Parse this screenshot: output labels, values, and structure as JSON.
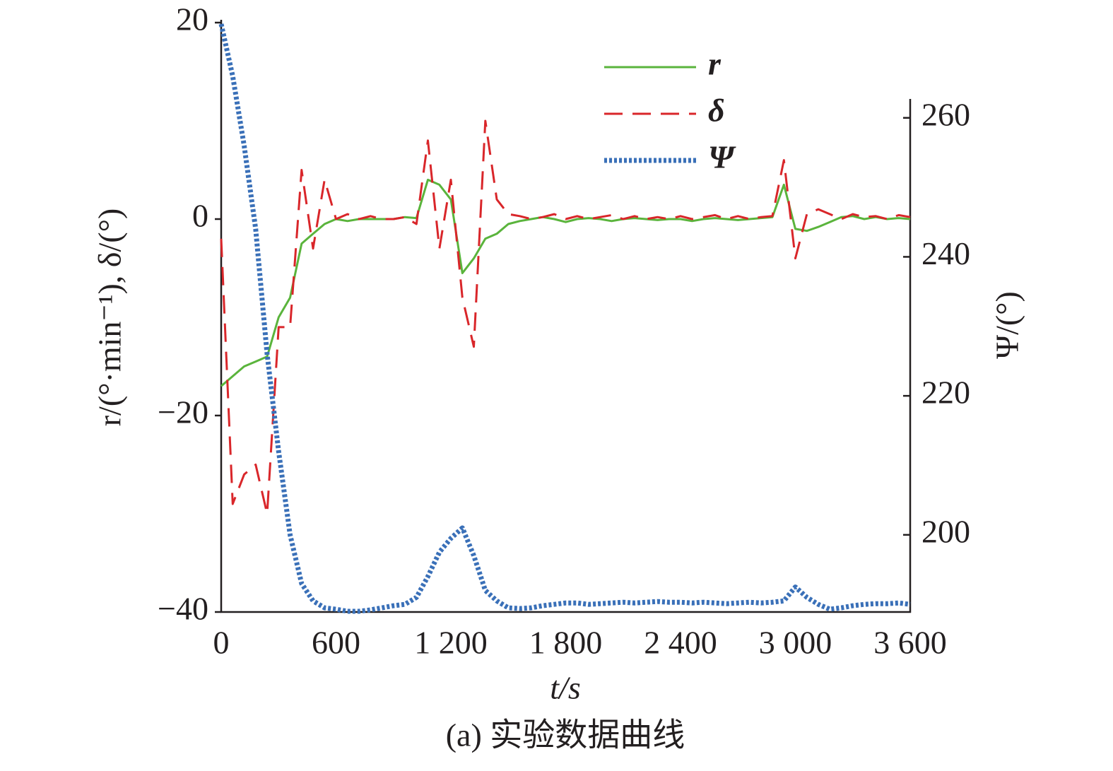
{
  "chart_data": {
    "type": "line",
    "caption": "(a) 实验数据曲线",
    "x_label": "t/s",
    "y_label": "r/(°·min⁻¹), δ/(°)",
    "y2_label": "Ψ/(°)",
    "x": [
      0,
      60,
      120,
      180,
      240,
      300,
      360,
      420,
      480,
      540,
      600,
      660,
      720,
      780,
      840,
      900,
      960,
      1020,
      1080,
      1140,
      1200,
      1260,
      1320,
      1380,
      1440,
      1500,
      1560,
      1620,
      1680,
      1740,
      1800,
      1860,
      1920,
      1980,
      2040,
      2100,
      2160,
      2220,
      2280,
      2340,
      2400,
      2460,
      2520,
      2580,
      2640,
      2700,
      2760,
      2820,
      2880,
      2940,
      3000,
      3060,
      3120,
      3180,
      3240,
      3300,
      3360,
      3420,
      3480,
      3540,
      3600
    ],
    "series": [
      {
        "name": "r",
        "color": "#5ab43c",
        "style": "solid",
        "values": [
          -17,
          -16,
          -15,
          -14.5,
          -14,
          -10,
          -8,
          -2.5,
          -1.5,
          -0.5,
          0,
          -0.2,
          0,
          0,
          0,
          0,
          0.2,
          0.1,
          4,
          3.5,
          2,
          -5.5,
          -4,
          -2,
          -1.5,
          -0.5,
          -0.2,
          0,
          0.2,
          0,
          -0.3,
          0,
          0.1,
          0,
          -0.2,
          0,
          0.1,
          0,
          -0.1,
          0,
          0,
          -0.2,
          0,
          0.1,
          0,
          -0.1,
          0,
          0.1,
          0.2,
          3.5,
          -1,
          -1.2,
          -0.8,
          -0.3,
          0.2,
          0.3,
          0,
          0.2,
          0,
          0.1,
          0
        ]
      },
      {
        "name": "δ",
        "color": "#d9262a",
        "style": "dashed",
        "values": [
          -2,
          -29,
          -26,
          -25,
          -30,
          -11,
          -11,
          5,
          -3,
          4,
          0,
          0.5,
          0,
          0.3,
          0,
          0,
          0.2,
          -0.5,
          8,
          -3,
          4,
          -8,
          -13,
          10,
          2,
          0.5,
          0.3,
          0,
          0.2,
          0.5,
          0,
          0.3,
          0,
          0.2,
          0.4,
          0,
          0.3,
          0,
          0.2,
          0,
          0.3,
          0,
          0.2,
          0.4,
          0,
          0.3,
          0,
          0.2,
          0.3,
          6,
          -4,
          0.5,
          1,
          0.5,
          0,
          0.5,
          0.2,
          0.3,
          0,
          0.4,
          0.2
        ]
      },
      {
        "name": "Ψ",
        "color": "#3a70b8",
        "style": "dotted",
        "axis": "y2",
        "values": [
          273.5,
          266,
          256,
          244,
          226,
          212,
          200,
          193,
          190.5,
          189.5,
          189.3,
          189,
          189,
          189.2,
          189.5,
          189.8,
          190,
          191,
          194,
          197.5,
          199.5,
          201,
          197,
          192,
          190.5,
          189.5,
          189.4,
          189.5,
          189.8,
          190,
          190.2,
          190.2,
          190,
          190.1,
          190.2,
          190.3,
          190.2,
          190.3,
          190.4,
          190.3,
          190.3,
          190.2,
          190.3,
          190.2,
          190.1,
          190.2,
          190.3,
          190.2,
          190.3,
          190.5,
          192.5,
          191,
          190,
          189.3,
          189.5,
          189.8,
          190,
          190.1,
          190.1,
          190.2,
          190
        ]
      }
    ],
    "xlim": [
      0,
      3600
    ],
    "xticks": [
      0,
      600,
      {
        "value": 1200,
        "label": "1 200"
      },
      {
        "value": 1800,
        "label": "1 800"
      },
      {
        "value": 2400,
        "label": "2 400"
      },
      {
        "value": 3000,
        "label": "3 000"
      },
      {
        "value": 3600,
        "label": "3 600"
      }
    ],
    "ylim": [
      -40,
      20
    ],
    "yticks": [
      {
        "value": -40,
        "label": "−40"
      },
      {
        "value": -20,
        "label": "−20"
      },
      0,
      20
    ],
    "y2lim": [
      188.9,
      273.7
    ],
    "y2ticks": [
      200,
      220,
      240,
      260
    ],
    "grid": false,
    "legend": "upper right"
  }
}
